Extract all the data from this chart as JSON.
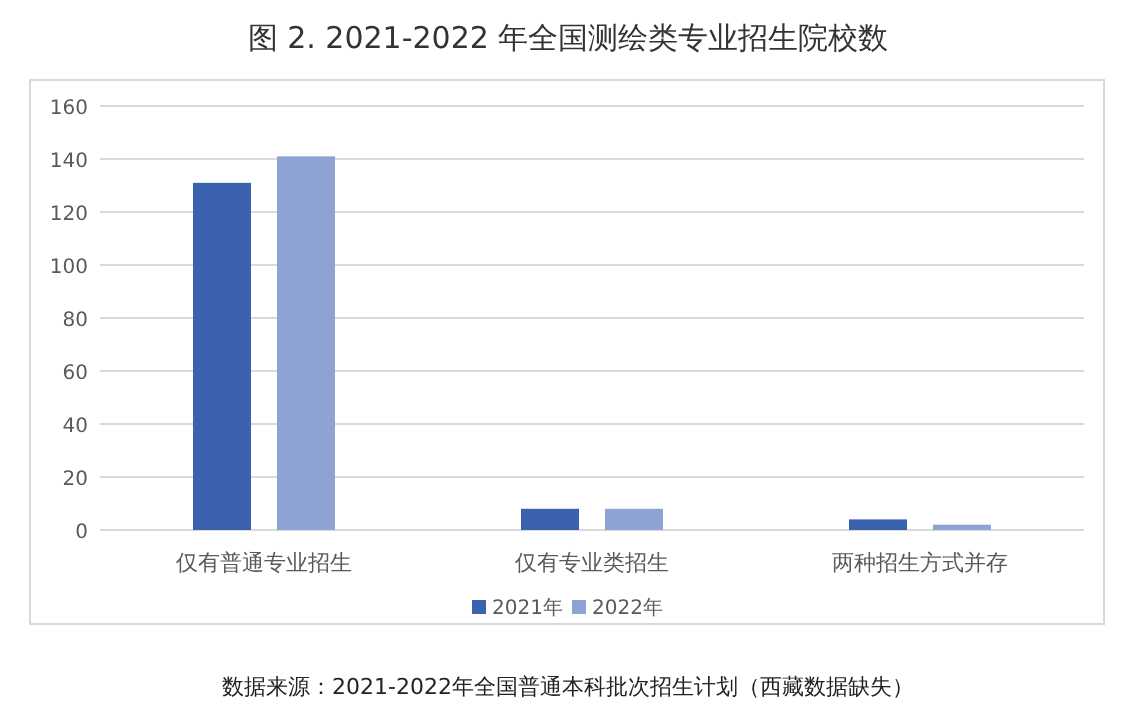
{
  "chart_data": {
    "type": "bar",
    "title": "图 2. 2021-2022 年全国测绘类专业招生院校数",
    "categories": [
      "仅有普通专业招生",
      "仅有专业类招生",
      "两种招生方式并存"
    ],
    "series": [
      {
        "name": "2021年",
        "color": "#3a62ae",
        "values": [
          131,
          8,
          4
        ]
      },
      {
        "name": "2022年",
        "color": "#8ea2d4",
        "values": [
          141,
          8,
          2
        ]
      }
    ],
    "ylim": [
      0,
      160
    ],
    "yticks": [
      0,
      20,
      40,
      60,
      80,
      100,
      120,
      140,
      160
    ],
    "grid": "y",
    "legend": "bottom",
    "annotations": [
      "数据来源：2021-2022年全国普通本科批次招生计划（西藏数据缺失）"
    ]
  }
}
